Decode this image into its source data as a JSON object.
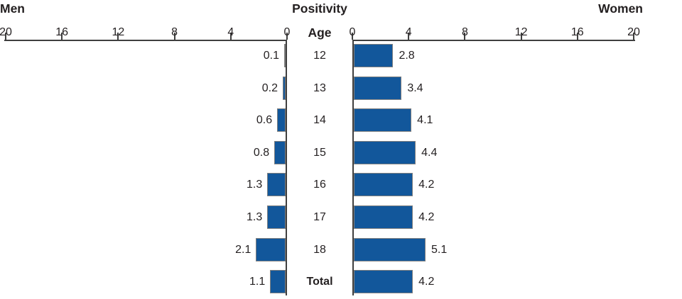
{
  "chart_data": {
    "type": "bar",
    "subtype": "population-pyramid",
    "title": "Positivity",
    "row_label_header": "Age",
    "categories": [
      "12",
      "13",
      "14",
      "15",
      "16",
      "17",
      "18",
      "Total"
    ],
    "bold_categories": [
      "Total"
    ],
    "series": [
      {
        "name": "Men",
        "side": "left",
        "values": [
          0.1,
          0.2,
          0.6,
          0.8,
          1.3,
          1.3,
          2.1,
          1.1
        ]
      },
      {
        "name": "Women",
        "side": "right",
        "values": [
          2.8,
          3.4,
          4.1,
          4.4,
          4.2,
          4.2,
          5.1,
          4.2
        ]
      }
    ],
    "value_label_decimals": 1,
    "axis_ticks": [
      0,
      4,
      8,
      12,
      16,
      20
    ],
    "xlim": [
      0,
      20
    ],
    "grid": "off",
    "colors": {
      "bar_fill": "#12579B",
      "bar_border": "#808080",
      "axis": "#3F3F3F",
      "text": "#231F20"
    }
  }
}
